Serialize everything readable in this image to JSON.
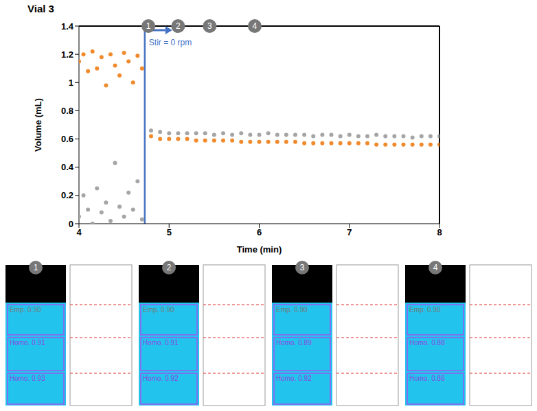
{
  "chart_data": {
    "type": "scatter",
    "title": "Vial 3",
    "x_label": "Time (min)",
    "y_label": "Volume (mL)",
    "xlim": [
      4,
      8
    ],
    "xticks": [
      4,
      5,
      6,
      7,
      8
    ],
    "ylim": [
      0,
      1.4
    ],
    "yticks": [
      0,
      0.2,
      0.4,
      0.6,
      0.8,
      1,
      1.2,
      1.4
    ],
    "grid": false,
    "marker": "circle",
    "x": [
      4.0,
      4.05,
      4.1,
      4.15,
      4.2,
      4.25,
      4.3,
      4.35,
      4.4,
      4.45,
      4.5,
      4.55,
      4.6,
      4.65,
      4.7,
      4.8,
      4.9,
      5.0,
      5.1,
      5.2,
      5.3,
      5.4,
      5.5,
      5.6,
      5.7,
      5.8,
      5.9,
      6.0,
      6.1,
      6.2,
      6.3,
      6.4,
      6.5,
      6.6,
      6.7,
      6.8,
      6.9,
      7.0,
      7.1,
      7.2,
      7.3,
      7.4,
      7.5,
      7.6,
      7.7,
      7.8,
      7.9,
      8.0
    ],
    "series": [
      {
        "color": "#f08a2c",
        "values": [
          1.15,
          1.2,
          1.08,
          1.22,
          1.1,
          1.18,
          0.98,
          1.2,
          1.12,
          1.05,
          1.21,
          1.15,
          1.0,
          1.19,
          1.1,
          0.62,
          0.6,
          0.6,
          0.6,
          0.6,
          0.59,
          0.59,
          0.59,
          0.59,
          0.59,
          0.58,
          0.58,
          0.58,
          0.58,
          0.58,
          0.58,
          0.58,
          0.57,
          0.57,
          0.57,
          0.57,
          0.57,
          0.57,
          0.57,
          0.57,
          0.56,
          0.56,
          0.56,
          0.56,
          0.56,
          0.56,
          0.56,
          0.56
        ]
      },
      {
        "color": "#a5a5a5",
        "values": [
          0.05,
          0.2,
          0.1,
          0.0,
          0.25,
          0.08,
          0.15,
          0.02,
          0.43,
          0.12,
          0.05,
          0.22,
          0.1,
          0.3,
          0.03,
          0.66,
          0.65,
          0.64,
          0.64,
          0.64,
          0.64,
          0.64,
          0.63,
          0.64,
          0.63,
          0.64,
          0.63,
          0.63,
          0.64,
          0.63,
          0.63,
          0.63,
          0.63,
          0.62,
          0.63,
          0.63,
          0.62,
          0.63,
          0.62,
          0.62,
          0.63,
          0.62,
          0.62,
          0.62,
          0.61,
          0.62,
          0.62,
          0.62
        ]
      }
    ],
    "annotation": {
      "text": "Stir = 0 rpm",
      "x": 4.73,
      "color": "#4472c4"
    },
    "markers": [
      {
        "x": 4.77,
        "label": "1"
      },
      {
        "x": 5.1,
        "label": "2"
      },
      {
        "x": 5.45,
        "label": "3"
      },
      {
        "x": 5.95,
        "label": "4"
      }
    ]
  },
  "panels": [
    {
      "label": "1",
      "detections": [
        "Emp. 0.90",
        "Homo. 0.91",
        "Homo. 0.93"
      ]
    },
    {
      "label": "2",
      "detections": [
        "Emp. 0.90",
        "Homo. 0.91",
        "Homo. 0.92"
      ]
    },
    {
      "label": "3",
      "detections": [
        "Emp. 0.90",
        "Homo. 0.89",
        "Homo. 0.92"
      ]
    },
    {
      "label": "4",
      "detections": [
        "Emp. 0.90",
        "Homo. 0.88",
        "Homo. 0.86"
      ]
    }
  ]
}
